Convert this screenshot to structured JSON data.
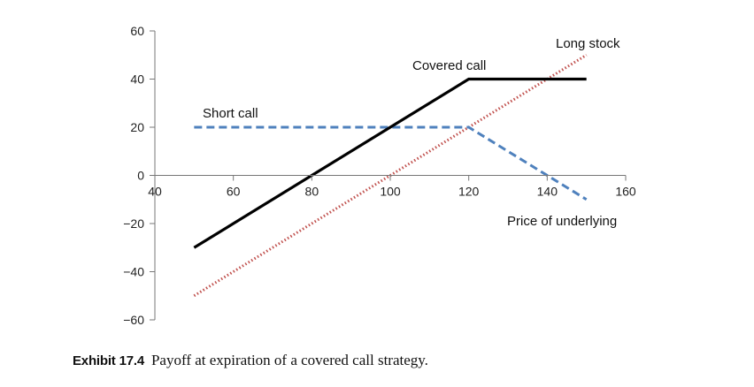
{
  "chart_data": {
    "type": "line",
    "x_axis": {
      "label": "Price of underlying",
      "range": [
        40,
        160
      ],
      "ticks": [
        40,
        60,
        80,
        100,
        120,
        140,
        160
      ]
    },
    "y_axis": {
      "label": "",
      "range": [
        -60,
        60
      ],
      "ticks": [
        -60,
        -40,
        -20,
        0,
        20,
        40,
        60
      ],
      "tick_labels": [
        "−60",
        "−40",
        "−20",
        "0",
        "20",
        "40",
        "60"
      ]
    },
    "grid": false,
    "series": [
      {
        "name": "Long stock",
        "style": "dotted",
        "color": "#c0504d",
        "x": [
          50,
          150
        ],
        "y": [
          -50,
          50
        ]
      },
      {
        "name": "Short call",
        "style": "dashed",
        "color": "#4f81bd",
        "x": [
          50,
          120,
          150
        ],
        "y": [
          20,
          20,
          -10
        ]
      },
      {
        "name": "Covered call",
        "style": "solid",
        "color": "#000000",
        "x": [
          50,
          120,
          150
        ],
        "y": [
          -30,
          40,
          40
        ]
      }
    ]
  },
  "caption": {
    "label": "Exhibit 17.4",
    "text": "Payoff at expiration of a covered call strategy."
  }
}
